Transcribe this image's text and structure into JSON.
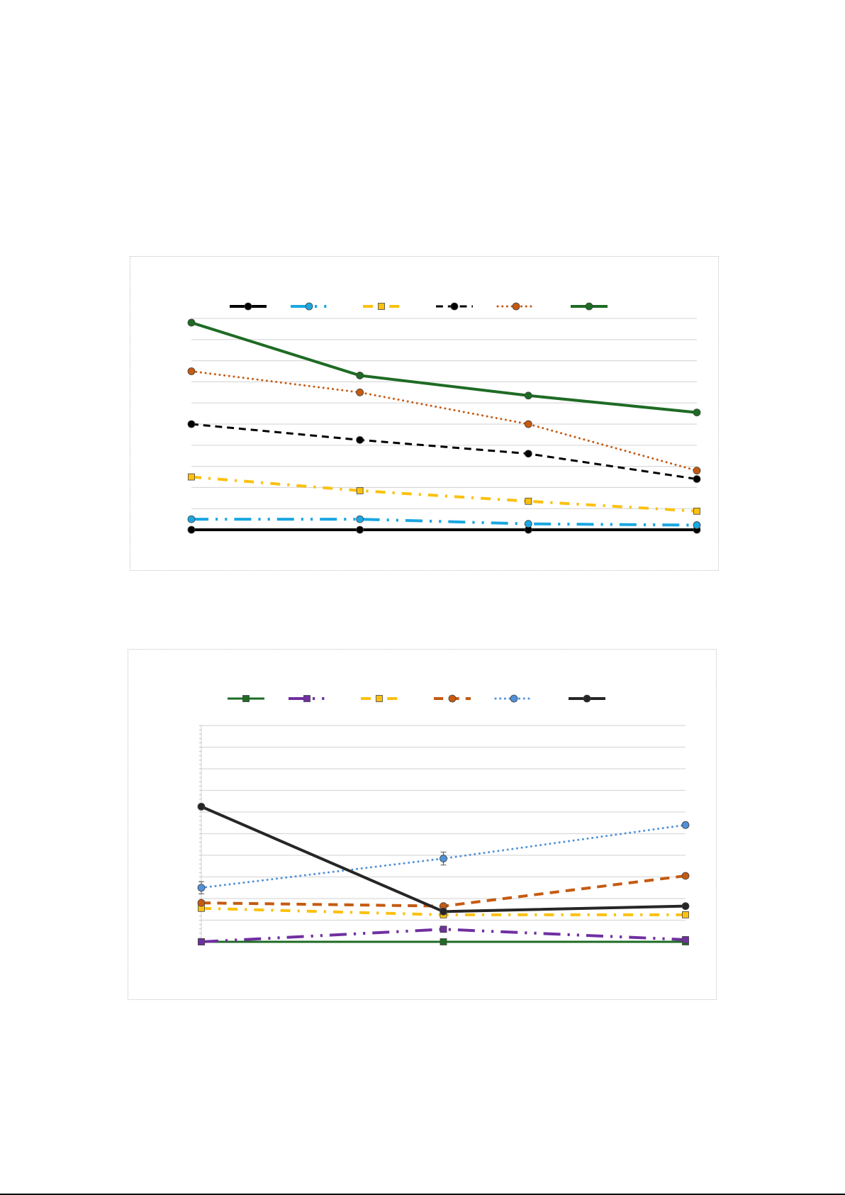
{
  "chart_data": [
    {
      "type": "line",
      "x": [
        1,
        2,
        3,
        4
      ],
      "ylim": [
        0,
        10
      ],
      "grid": true,
      "legend_position": "top",
      "series": [
        {
          "values": [
            0,
            0,
            0,
            0
          ],
          "color": "#000000",
          "dash": "solid",
          "width": 4,
          "marker": "circle"
        },
        {
          "values": [
            0.5,
            0.5,
            0.28,
            0.22
          ],
          "color": "#1aa7e2",
          "dash": "long-dash-dot-dot",
          "width": 4,
          "marker": "circle"
        },
        {
          "values": [
            2.5,
            1.85,
            1.35,
            0.88
          ],
          "color": "#fbc10f",
          "dash": "dash-dot",
          "width": 4,
          "marker": "square"
        },
        {
          "values": [
            5.0,
            4.25,
            3.6,
            2.4
          ],
          "color": "#000000",
          "dash": "dashed",
          "width": 3,
          "marker": "circle"
        },
        {
          "values": [
            7.5,
            6.5,
            5.0,
            2.8
          ],
          "color": "#c55a11",
          "dash": "dotted",
          "width": 3,
          "marker": "circle"
        },
        {
          "values": [
            9.8,
            7.3,
            6.35,
            5.55
          ],
          "color": "#1e6b24",
          "dash": "solid",
          "width": 4,
          "marker": "circle"
        }
      ]
    },
    {
      "type": "line",
      "x": [
        1,
        2,
        3
      ],
      "ylim": [
        0,
        10
      ],
      "grid": true,
      "legend_position": "top",
      "error_bars": true,
      "series": [
        {
          "values": [
            0,
            0,
            0
          ],
          "color": "#1e6b24",
          "dash": "solid",
          "width": 3,
          "marker": "square"
        },
        {
          "values": [
            0,
            0.58,
            0.1
          ],
          "color": "#7030a0",
          "dash": "long-dash-dot-dot",
          "width": 4,
          "marker": "square"
        },
        {
          "values": [
            1.55,
            1.25,
            1.25
          ],
          "color": "#fbc10f",
          "dash": "dash-dot",
          "width": 4,
          "marker": "square"
        },
        {
          "values": [
            1.8,
            1.65,
            3.05
          ],
          "color": "#c55a11",
          "dash": "dashed",
          "width": 4,
          "marker": "circle"
        },
        {
          "values": [
            2.5,
            3.85,
            5.4
          ],
          "color": "#4f91d8",
          "dash": "dotted",
          "width": 3,
          "marker": "circle",
          "error": [
            0.28,
            0.3,
            0.12
          ]
        },
        {
          "values": [
            6.25,
            1.4,
            1.65
          ],
          "color": "#262626",
          "dash": "solid",
          "width": 4,
          "marker": "circle"
        }
      ]
    }
  ]
}
